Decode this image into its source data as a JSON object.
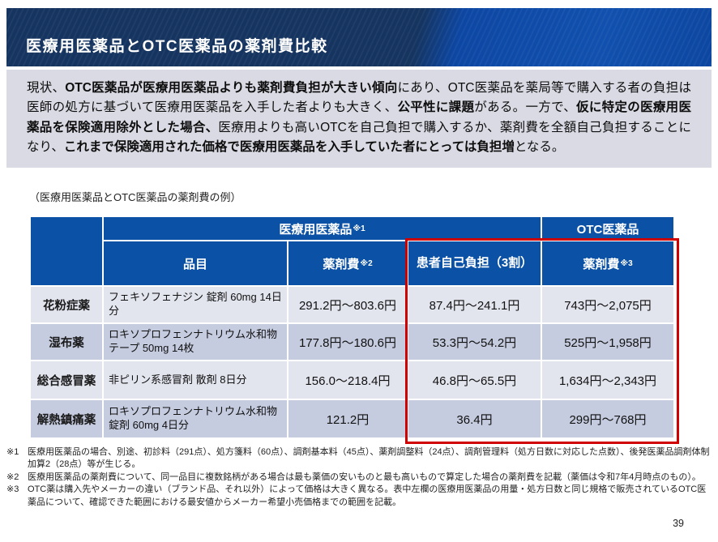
{
  "slide": {
    "title": "医療用医薬品とOTC医薬品の薬剤費比較",
    "page_number": "39"
  },
  "intro": {
    "segments": [
      {
        "t": "現状、",
        "b": false
      },
      {
        "t": "OTC医薬品が医療用医薬品よりも薬剤費負担が大きい傾向",
        "b": true
      },
      {
        "t": "にあり、OTC医薬品を薬局等で購入する者の負担は医師の処方に基づいて医療用医薬品を入手した者よりも大きく、",
        "b": false
      },
      {
        "t": "公平性に課題",
        "b": true
      },
      {
        "t": "がある。一方で、",
        "b": false
      },
      {
        "t": "仮に特定の医療用医薬品を保険適用除外とした場合、",
        "b": true
      },
      {
        "t": "医療用よりも高いOTCを自己負担で購入するか、薬剤費を全額自己負担することになり、",
        "b": false
      },
      {
        "t": "これまで保険適用された価格で医療用医薬品を入手していた者にとっては負担増",
        "b": true
      },
      {
        "t": "となる。",
        "b": false
      }
    ]
  },
  "table": {
    "caption": "（医療用医薬品とOTC医薬品の薬剤費の例）",
    "header": {
      "group_medical": "医療用医薬品",
      "group_medical_note": "※1",
      "group_otc": "OTC医薬品",
      "col_item": "品目",
      "col_cost": "薬剤費",
      "col_cost_note": "※2",
      "col_copay": "患者自己負担（3割）",
      "col_otc_cost": "薬剤費",
      "col_otc_cost_note": "※3"
    },
    "rows": [
      {
        "category": "花粉症薬",
        "item": "フェキソフェナジン 錠剤 60mg 14日分",
        "cost": "291.2円～803.6円",
        "copay": "87.4円～241.1円",
        "otc": "743円～2,075円"
      },
      {
        "category": "湿布薬",
        "item": "ロキソプロフェンナトリウム水和物テープ 50mg 14枚",
        "cost": "177.8円～180.6円",
        "copay": "53.3円～54.2円",
        "otc": "525円～1,958円"
      },
      {
        "category": "総合感冒薬",
        "item": "非ピリン系感冒剤 散剤 8日分",
        "cost": "156.0～218.4円",
        "copay": "46.8円～65.5円",
        "otc": "1,634円～2,343円"
      },
      {
        "category": "解熱鎮痛薬",
        "item": "ロキソプロフェンナトリウム水和物 錠剤 60mg 4日分",
        "cost": "121.2円",
        "copay": "36.4円",
        "otc": "299円～768円"
      }
    ]
  },
  "footnotes": [
    {
      "marker": "※1",
      "text": "医療用医薬品の場合、別途、初診料（291点）、処方箋料（60点）、調剤基本料（45点）、薬剤調整料（24点）、調剤管理料（処方日数に対応した点数）、後発医薬品調剤体制加算2（28点）等が生じる。"
    },
    {
      "marker": "※2",
      "text": "医療用医薬品の薬剤費について、同一品目に複数銘柄がある場合は最も薬価の安いものと最も高いもので算定した場合の薬剤費を記載（薬価は令和7年4月時点のもの）。"
    },
    {
      "marker": "※3",
      "text": "OTC薬は購入先やメーカーの違い（ブランド品、それ以外）によって価格は大きく異なる。表中左欄の医療用医薬品の用量・処方日数と同じ規格で販売されているOTC医薬品について、確認できた範囲における最安値からメーカー希望小売価格までの範囲を記載。"
    }
  ],
  "colors": {
    "band_dark": "#15345f",
    "band_bright": "#0e49a8",
    "table_header_blue": "#0b51a5",
    "row_light": "#e2e4ee",
    "row_dark": "#c6cce0",
    "intro_bg": "#d9dae3",
    "highlight_red": "#d10000"
  }
}
